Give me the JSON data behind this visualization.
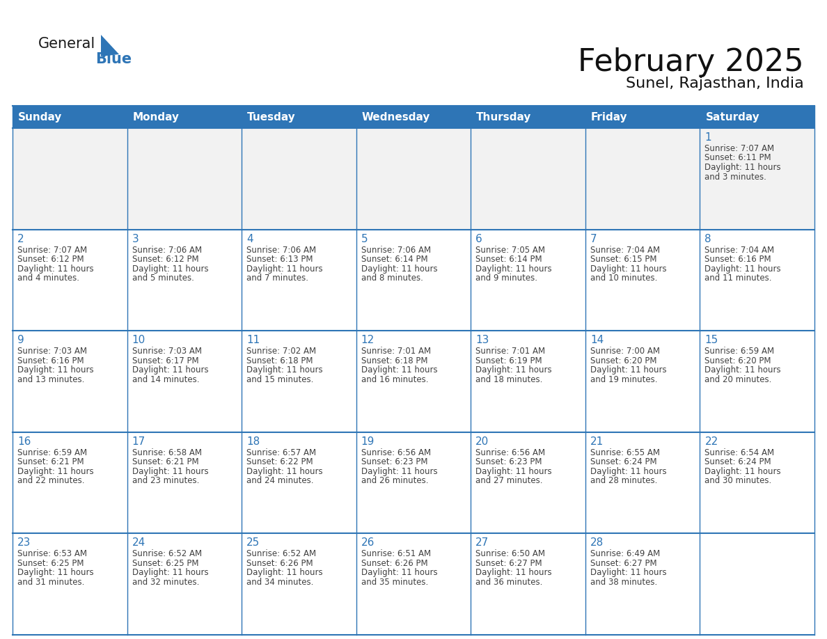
{
  "title": "February 2025",
  "subtitle": "Sunel, Rajasthan, India",
  "header_bg_color": "#2e75b6",
  "header_text_color": "#ffffff",
  "cell_bg_color": "#ffffff",
  "cell_alt_bg_color": "#f2f2f2",
  "cell_border_color": "#2e75b6",
  "day_number_color": "#2e75b6",
  "cell_text_color": "#404040",
  "background_color": "#ffffff",
  "days_of_week": [
    "Sunday",
    "Monday",
    "Tuesday",
    "Wednesday",
    "Thursday",
    "Friday",
    "Saturday"
  ],
  "calendar_data": [
    [
      null,
      null,
      null,
      null,
      null,
      null,
      {
        "day": 1,
        "sunrise": "7:07 AM",
        "sunset": "6:11 PM",
        "daylight": "11 hours\nand 3 minutes."
      }
    ],
    [
      {
        "day": 2,
        "sunrise": "7:07 AM",
        "sunset": "6:12 PM",
        "daylight": "11 hours\nand 4 minutes."
      },
      {
        "day": 3,
        "sunrise": "7:06 AM",
        "sunset": "6:12 PM",
        "daylight": "11 hours\nand 5 minutes."
      },
      {
        "day": 4,
        "sunrise": "7:06 AM",
        "sunset": "6:13 PM",
        "daylight": "11 hours\nand 7 minutes."
      },
      {
        "day": 5,
        "sunrise": "7:06 AM",
        "sunset": "6:14 PM",
        "daylight": "11 hours\nand 8 minutes."
      },
      {
        "day": 6,
        "sunrise": "7:05 AM",
        "sunset": "6:14 PM",
        "daylight": "11 hours\nand 9 minutes."
      },
      {
        "day": 7,
        "sunrise": "7:04 AM",
        "sunset": "6:15 PM",
        "daylight": "11 hours\nand 10 minutes."
      },
      {
        "day": 8,
        "sunrise": "7:04 AM",
        "sunset": "6:16 PM",
        "daylight": "11 hours\nand 11 minutes."
      }
    ],
    [
      {
        "day": 9,
        "sunrise": "7:03 AM",
        "sunset": "6:16 PM",
        "daylight": "11 hours\nand 13 minutes."
      },
      {
        "day": 10,
        "sunrise": "7:03 AM",
        "sunset": "6:17 PM",
        "daylight": "11 hours\nand 14 minutes."
      },
      {
        "day": 11,
        "sunrise": "7:02 AM",
        "sunset": "6:18 PM",
        "daylight": "11 hours\nand 15 minutes."
      },
      {
        "day": 12,
        "sunrise": "7:01 AM",
        "sunset": "6:18 PM",
        "daylight": "11 hours\nand 16 minutes."
      },
      {
        "day": 13,
        "sunrise": "7:01 AM",
        "sunset": "6:19 PM",
        "daylight": "11 hours\nand 18 minutes."
      },
      {
        "day": 14,
        "sunrise": "7:00 AM",
        "sunset": "6:20 PM",
        "daylight": "11 hours\nand 19 minutes."
      },
      {
        "day": 15,
        "sunrise": "6:59 AM",
        "sunset": "6:20 PM",
        "daylight": "11 hours\nand 20 minutes."
      }
    ],
    [
      {
        "day": 16,
        "sunrise": "6:59 AM",
        "sunset": "6:21 PM",
        "daylight": "11 hours\nand 22 minutes."
      },
      {
        "day": 17,
        "sunrise": "6:58 AM",
        "sunset": "6:21 PM",
        "daylight": "11 hours\nand 23 minutes."
      },
      {
        "day": 18,
        "sunrise": "6:57 AM",
        "sunset": "6:22 PM",
        "daylight": "11 hours\nand 24 minutes."
      },
      {
        "day": 19,
        "sunrise": "6:56 AM",
        "sunset": "6:23 PM",
        "daylight": "11 hours\nand 26 minutes."
      },
      {
        "day": 20,
        "sunrise": "6:56 AM",
        "sunset": "6:23 PM",
        "daylight": "11 hours\nand 27 minutes."
      },
      {
        "day": 21,
        "sunrise": "6:55 AM",
        "sunset": "6:24 PM",
        "daylight": "11 hours\nand 28 minutes."
      },
      {
        "day": 22,
        "sunrise": "6:54 AM",
        "sunset": "6:24 PM",
        "daylight": "11 hours\nand 30 minutes."
      }
    ],
    [
      {
        "day": 23,
        "sunrise": "6:53 AM",
        "sunset": "6:25 PM",
        "daylight": "11 hours\nand 31 minutes."
      },
      {
        "day": 24,
        "sunrise": "6:52 AM",
        "sunset": "6:25 PM",
        "daylight": "11 hours\nand 32 minutes."
      },
      {
        "day": 25,
        "sunrise": "6:52 AM",
        "sunset": "6:26 PM",
        "daylight": "11 hours\nand 34 minutes."
      },
      {
        "day": 26,
        "sunrise": "6:51 AM",
        "sunset": "6:26 PM",
        "daylight": "11 hours\nand 35 minutes."
      },
      {
        "day": 27,
        "sunrise": "6:50 AM",
        "sunset": "6:27 PM",
        "daylight": "11 hours\nand 36 minutes."
      },
      {
        "day": 28,
        "sunrise": "6:49 AM",
        "sunset": "6:27 PM",
        "daylight": "11 hours\nand 38 minutes."
      },
      null
    ]
  ],
  "logo_text_general": "General",
  "logo_text_blue": "Blue",
  "logo_color_general": "#1a1a1a",
  "logo_color_blue": "#2e75b6",
  "logo_triangle_color": "#2e75b6",
  "title_fontsize": 32,
  "subtitle_fontsize": 16,
  "header_fontsize": 11,
  "day_num_fontsize": 11,
  "cell_text_fontsize": 8.5
}
